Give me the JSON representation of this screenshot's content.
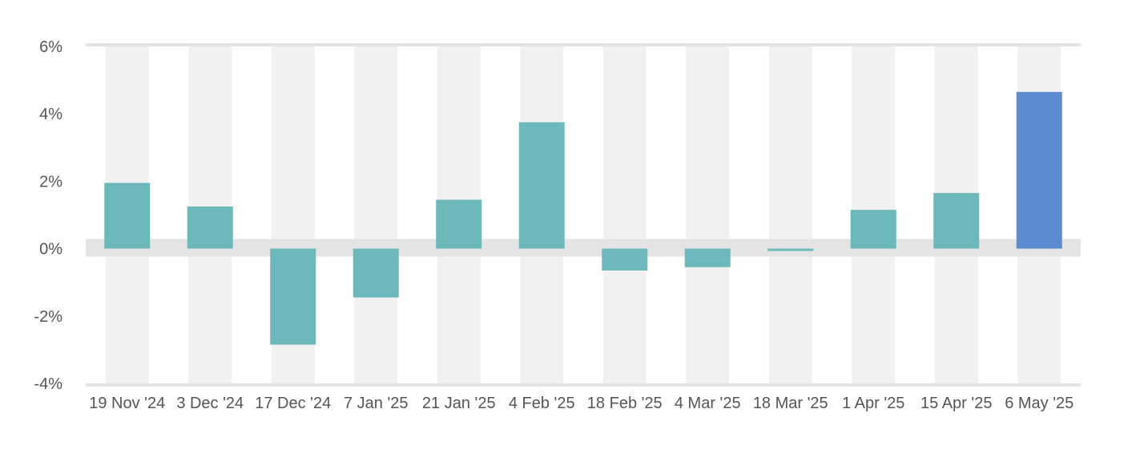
{
  "chart_data": {
    "type": "bar",
    "title": "",
    "xlabel": "",
    "ylabel": "",
    "categories": [
      "19 Nov '24",
      "3 Dec '24",
      "17 Dec '24",
      "7 Jan '25",
      "21 Jan '25",
      "4 Feb '25",
      "18 Feb '25",
      "4 Mar '25",
      "18 Mar '25",
      "1 Apr '25",
      "15 Apr '25",
      "6 May '25"
    ],
    "values": [
      1.95,
      1.25,
      -2.85,
      -1.45,
      1.45,
      3.75,
      -0.65,
      -0.55,
      -0.05,
      1.15,
      1.65,
      4.65
    ],
    "ylim": [
      -4,
      6
    ],
    "yticks": [
      6,
      4,
      2,
      0,
      -2,
      -4
    ],
    "ytick_labels": [
      "6%",
      "4%",
      "2%",
      "0%",
      "-2%",
      "-4%"
    ],
    "grid": "alternating column bands",
    "legend": "none",
    "highlight_index": 11,
    "colors": {
      "bar": "#6db8bb",
      "highlight_bar": "#5d8bd0",
      "band": "#f1f1f1",
      "zero_band": "#e4e4e4",
      "axis_line": "#e4e4e4",
      "label": "#555555"
    }
  }
}
